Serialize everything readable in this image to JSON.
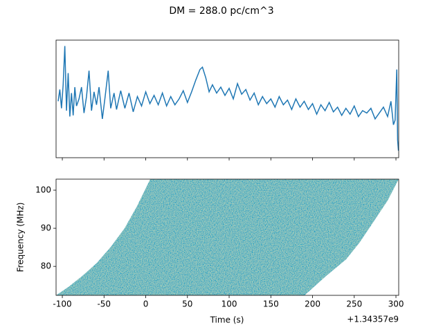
{
  "title": "DM = 288.0 pc/cm^3",
  "chart_data": [
    {
      "type": "line",
      "xlim": [
        -107.5,
        303.3
      ],
      "ylim": [
        0,
        10
      ],
      "xticks": [
        -100,
        -50,
        0,
        50,
        100,
        150,
        200,
        250,
        300
      ],
      "tick_labels": false,
      "series": [
        {
          "color": "#1f77b4",
          "x": [
            -105,
            -103,
            -101,
            -99,
            -97,
            -95,
            -93,
            -91,
            -89,
            -87,
            -85,
            -83,
            -80,
            -77,
            -74,
            -71,
            -68,
            -65,
            -62,
            -59,
            -56,
            -52,
            -49,
            -45,
            -42,
            -38,
            -35,
            -30,
            -25,
            -20,
            -15,
            -10,
            -5,
            0,
            5,
            10,
            15,
            20,
            25,
            30,
            35,
            40,
            45,
            50,
            55,
            60,
            65,
            68,
            72,
            76,
            80,
            85,
            90,
            95,
            100,
            105,
            110,
            115,
            120,
            125,
            130,
            135,
            140,
            145,
            150,
            155,
            160,
            165,
            170,
            175,
            180,
            185,
            190,
            195,
            200,
            205,
            210,
            215,
            220,
            225,
            230,
            235,
            240,
            245,
            250,
            255,
            260,
            265,
            270,
            275,
            280,
            285,
            290,
            294,
            297,
            299,
            301,
            302,
            303
          ],
          "values": [
            4.8,
            5.8,
            4.2,
            6.2,
            9.5,
            4.0,
            7.2,
            3.5,
            5.5,
            3.6,
            6.0,
            4.4,
            5.0,
            6.0,
            3.8,
            5.2,
            7.4,
            4.0,
            5.6,
            4.5,
            6.0,
            3.3,
            5.0,
            7.4,
            4.2,
            5.5,
            4.1,
            5.7,
            4.2,
            5.5,
            3.9,
            5.2,
            4.4,
            5.6,
            4.6,
            5.3,
            4.5,
            5.5,
            4.4,
            5.2,
            4.5,
            5.0,
            5.7,
            4.7,
            5.6,
            6.6,
            7.5,
            7.7,
            6.8,
            5.6,
            6.2,
            5.5,
            6.0,
            5.3,
            5.9,
            5.0,
            6.3,
            5.4,
            5.8,
            4.9,
            5.5,
            4.5,
            5.2,
            4.6,
            5.0,
            4.3,
            5.2,
            4.5,
            4.9,
            4.1,
            5.0,
            4.3,
            4.8,
            4.1,
            4.6,
            3.7,
            4.5,
            4.0,
            4.7,
            3.9,
            4.3,
            3.6,
            4.2,
            3.7,
            4.4,
            3.5,
            4.0,
            3.8,
            4.2,
            3.3,
            3.8,
            4.3,
            3.5,
            4.8,
            2.8,
            3.2,
            7.5,
            1.5,
            0.6
          ]
        }
      ]
    },
    {
      "type": "waterfall",
      "xlim": [
        -107.5,
        303.3
      ],
      "ylim": [
        72.4,
        102.9
      ],
      "xticks": [
        -100,
        -50,
        0,
        50,
        100,
        150,
        200,
        250,
        300
      ],
      "yticks": [
        80,
        90,
        100
      ],
      "xlabel": "Time (s)",
      "ylabel": "Frequency (MHz)",
      "offset_text": "+1.34357e9"
    }
  ]
}
